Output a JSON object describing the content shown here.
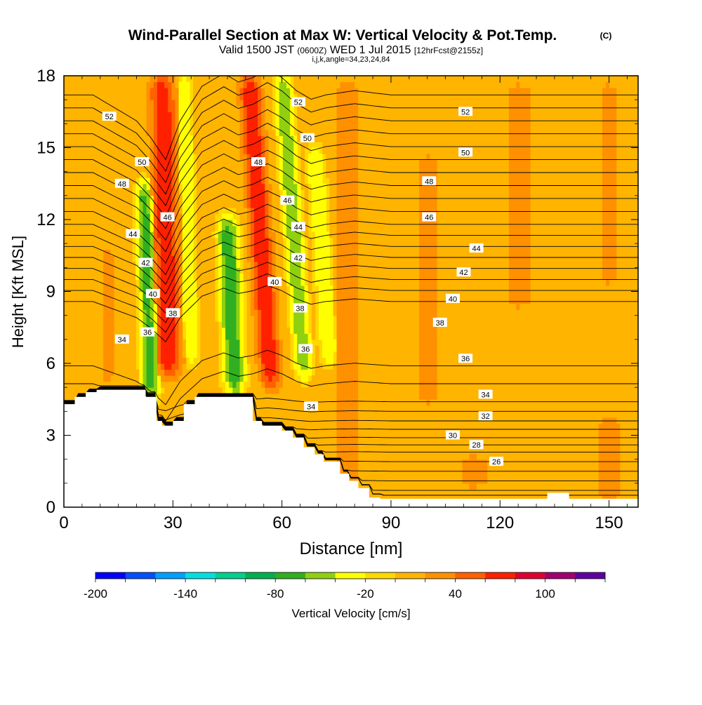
{
  "title": {
    "main": "Wind-Parallel Section at Max W: Vertical Velocity & Pot.Temp.",
    "copyright": "(C)",
    "valid_prefix": "Valid 1500 JST",
    "valid_zulu": "(0600Z)",
    "valid_date": "WED 1 Jul 2015",
    "forecast": "[12hrFcst@2155z]",
    "indices": "i,j,k,angle=34,23,24,84"
  },
  "chart_data": {
    "type": "heatmap",
    "xlabel": "Distance [nm]",
    "ylabel": "Height [Kft MSL]",
    "xlim": [
      0,
      158
    ],
    "ylim": [
      0,
      18
    ],
    "x_ticks": [
      0,
      30,
      60,
      90,
      120,
      150
    ],
    "y_ticks": [
      0,
      3,
      6,
      9,
      12,
      15,
      18
    ],
    "colorbar": {
      "label": "Vertical Velocity [cm/s]",
      "tick_values": [
        -200,
        -140,
        -80,
        -20,
        40,
        100
      ],
      "min": -200,
      "step": 20,
      "colors": [
        "#0000ff",
        "#0050ff",
        "#00a0ff",
        "#00e0e0",
        "#00d090",
        "#00b050",
        "#30b020",
        "#90d010",
        "#ffff00",
        "#ffd800",
        "#ffb400",
        "#ff9000",
        "#ff6000",
        "#ff2000",
        "#e00030",
        "#a00070",
        "#6000a0"
      ]
    },
    "background_band": {
      "value_range": [
        0,
        20
      ],
      "color": "#ffd800"
    },
    "velocity_features": [
      {
        "x": 29,
        "y0": 5.5,
        "y1": 18,
        "lean": -2,
        "halfwidth": 4.5,
        "peak_value": 80
      },
      {
        "x": 24,
        "y0": 4.5,
        "y1": 13.5,
        "lean": -2,
        "halfwidth": 3,
        "peak_value": -70
      },
      {
        "x": 35,
        "y0": 6,
        "y1": 18,
        "lean": -2,
        "halfwidth": 2.5,
        "peak_value": -40
      },
      {
        "x": 47,
        "y0": 4.8,
        "y1": 12,
        "lean": -2,
        "halfwidth": 3.5,
        "peak_value": -80
      },
      {
        "x": 57,
        "y0": 5,
        "y1": 18,
        "lean": -6,
        "halfwidth": 4,
        "peak_value": 80
      },
      {
        "x": 66,
        "y0": 5.5,
        "y1": 18,
        "lean": -6,
        "halfwidth": 3,
        "peak_value": -60
      },
      {
        "x": 73,
        "y0": 6,
        "y1": 15,
        "lean": -4,
        "halfwidth": 3,
        "peak_value": -40
      },
      {
        "x": 12,
        "y0": 5,
        "y1": 11,
        "lean": 0,
        "halfwidth": 3,
        "peak_value": 30
      },
      {
        "x": 78,
        "y0": 0,
        "y1": 18,
        "lean": 0,
        "halfwidth": 5,
        "peak_value": 30
      },
      {
        "x": 100,
        "y0": 4,
        "y1": 15,
        "lean": 0,
        "halfwidth": 6,
        "peak_value": 25
      },
      {
        "x": 125,
        "y0": 8,
        "y1": 18,
        "lean": 0,
        "halfwidth": 8,
        "peak_value": 25
      },
      {
        "x": 150,
        "y0": 0,
        "y1": 4,
        "lean": 0,
        "halfwidth": 6,
        "peak_value": 30
      },
      {
        "x": 150,
        "y0": 9,
        "y1": 18,
        "lean": 0,
        "halfwidth": 5,
        "peak_value": 25
      },
      {
        "x": 113,
        "y0": 0.5,
        "y1": 2.5,
        "lean": 0,
        "halfwidth": 10,
        "peak_value": 25
      }
    ],
    "terrain": {
      "x": [
        0,
        3,
        3,
        6,
        6,
        9,
        9,
        22.5,
        22.5,
        25.5,
        25.5,
        27,
        27,
        30,
        30,
        33,
        33,
        36,
        36,
        52,
        52,
        54.5,
        54.5,
        60,
        60,
        63,
        63,
        66,
        66,
        69,
        69,
        71.5,
        71.5,
        76,
        76,
        78.5,
        78.5,
        81,
        81,
        84,
        84,
        87,
        87,
        158
      ],
      "height_kft": [
        4.3,
        4.3,
        4.6,
        4.6,
        4.8,
        4.8,
        4.9,
        4.9,
        4.6,
        4.6,
        3.6,
        3.6,
        3.4,
        3.4,
        3.6,
        3.6,
        4.3,
        4.3,
        4.6,
        4.6,
        3.6,
        3.6,
        3.4,
        3.4,
        3.2,
        3.2,
        2.9,
        2.9,
        2.5,
        2.5,
        2.2,
        2.2,
        1.9,
        1.9,
        1.4,
        1.4,
        1.1,
        1.1,
        0.8,
        0.8,
        0.4,
        0.4,
        0.35,
        0.35
      ],
      "bumps": [
        {
          "x0": 133,
          "x1": 139,
          "height_kft": 0.6
        }
      ]
    },
    "isentropes": {
      "theta_min": 22,
      "theta_max": 54,
      "theta_step": 1,
      "x_nodes": [
        0,
        8,
        14,
        20,
        24,
        28,
        32,
        38,
        44,
        48,
        52,
        56,
        60,
        64,
        68,
        72,
        80,
        90,
        100,
        110,
        120,
        135,
        158
      ],
      "reference_height_kft": [
        [
          34,
          7.2
        ],
        [
          44,
          11.8
        ],
        [
          54,
          17.2
        ]
      ],
      "deformation_kft": [
        0,
        0,
        -0.3,
        -0.6,
        -1.0,
        -1.5,
        -0.6,
        0.2,
        0.5,
        0.3,
        0.4,
        0.6,
        0.4,
        0.1,
        -0.1,
        0,
        0.1,
        0,
        0,
        0,
        0,
        0,
        0
      ],
      "stable_layer": [
        [
          22,
          0.3
        ],
        [
          24,
          0.7
        ],
        [
          26,
          1.5
        ],
        [
          28,
          2.3
        ],
        [
          30,
          2.9
        ],
        [
          32,
          3.6
        ],
        [
          34,
          4.4
        ],
        [
          36,
          5.9
        ]
      ],
      "labels": [
        {
          "value": 52,
          "x": 12.5,
          "y": 16.3
        },
        {
          "value": 50,
          "x": 21.5,
          "y": 14.4
        },
        {
          "value": 48,
          "x": 16,
          "y": 13.5
        },
        {
          "value": 46,
          "x": 28.5,
          "y": 12.1
        },
        {
          "value": 44,
          "x": 19,
          "y": 11.4
        },
        {
          "value": 42,
          "x": 22.5,
          "y": 10.2
        },
        {
          "value": 40,
          "x": 24.5,
          "y": 8.9
        },
        {
          "value": 38,
          "x": 30,
          "y": 8.1
        },
        {
          "value": 36,
          "x": 23,
          "y": 7.3
        },
        {
          "value": 34,
          "x": 16,
          "y": 7.0
        },
        {
          "value": 48,
          "x": 53.5,
          "y": 14.4
        },
        {
          "value": 46,
          "x": 61.5,
          "y": 12.8
        },
        {
          "value": 44,
          "x": 64.5,
          "y": 11.7
        },
        {
          "value": 42,
          "x": 64.5,
          "y": 10.4
        },
        {
          "value": 40,
          "x": 58,
          "y": 9.4
        },
        {
          "value": 38,
          "x": 65,
          "y": 8.3
        },
        {
          "value": 36,
          "x": 66.5,
          "y": 6.6
        },
        {
          "value": 34,
          "x": 68,
          "y": 4.2
        },
        {
          "value": 52,
          "x": 64.5,
          "y": 16.9
        },
        {
          "value": 50,
          "x": 67,
          "y": 15.4
        },
        {
          "value": 52,
          "x": 110.5,
          "y": 16.5
        },
        {
          "value": 50,
          "x": 110.5,
          "y": 14.8
        },
        {
          "value": 48,
          "x": 100.5,
          "y": 13.6
        },
        {
          "value": 46,
          "x": 100.5,
          "y": 12.1
        },
        {
          "value": 44,
          "x": 113.5,
          "y": 10.8
        },
        {
          "value": 42,
          "x": 110,
          "y": 9.8
        },
        {
          "value": 40,
          "x": 107,
          "y": 8.7
        },
        {
          "value": 38,
          "x": 103.5,
          "y": 7.7
        },
        {
          "value": 36,
          "x": 110.5,
          "y": 6.2
        },
        {
          "value": 34,
          "x": 116,
          "y": 4.7
        },
        {
          "value": 32,
          "x": 116,
          "y": 3.8
        },
        {
          "value": 30,
          "x": 107,
          "y": 3.0
        },
        {
          "value": 28,
          "x": 113.5,
          "y": 2.6
        },
        {
          "value": 26,
          "x": 119,
          "y": 1.9
        }
      ]
    }
  }
}
